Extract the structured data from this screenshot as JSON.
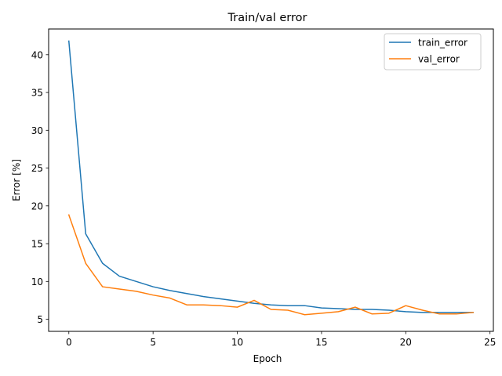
{
  "chart_data": {
    "type": "line",
    "title": "Train/val error",
    "xlabel": "Epoch",
    "ylabel": "Error [%]",
    "xlim": [
      -1.2,
      25.2
    ],
    "ylim": [
      3.4,
      43.4
    ],
    "xticks": [
      0,
      5,
      10,
      15,
      20,
      25
    ],
    "yticks": [
      5,
      10,
      15,
      20,
      25,
      30,
      35,
      40
    ],
    "grid": false,
    "legend_position": "top-right",
    "x": [
      0,
      1,
      2,
      3,
      4,
      5,
      6,
      7,
      8,
      9,
      10,
      11,
      12,
      13,
      14,
      15,
      16,
      17,
      18,
      19,
      20,
      21,
      22,
      23,
      24
    ],
    "series": [
      {
        "name": "train_error",
        "color": "#1f77b4",
        "values": [
          41.8,
          16.3,
          12.4,
          10.7,
          10.0,
          9.3,
          8.8,
          8.4,
          8.0,
          7.7,
          7.4,
          7.1,
          6.9,
          6.8,
          6.8,
          6.5,
          6.4,
          6.3,
          6.3,
          6.2,
          6.0,
          5.9,
          5.9,
          5.9,
          5.9
        ]
      },
      {
        "name": "val_error",
        "color": "#ff7f0e",
        "values": [
          18.8,
          12.4,
          9.3,
          9.0,
          8.7,
          8.2,
          7.8,
          6.9,
          6.9,
          6.8,
          6.6,
          7.5,
          6.3,
          6.2,
          5.6,
          5.8,
          6.0,
          6.6,
          5.7,
          5.8,
          6.8,
          6.2,
          5.7,
          5.7,
          5.9
        ]
      }
    ]
  }
}
